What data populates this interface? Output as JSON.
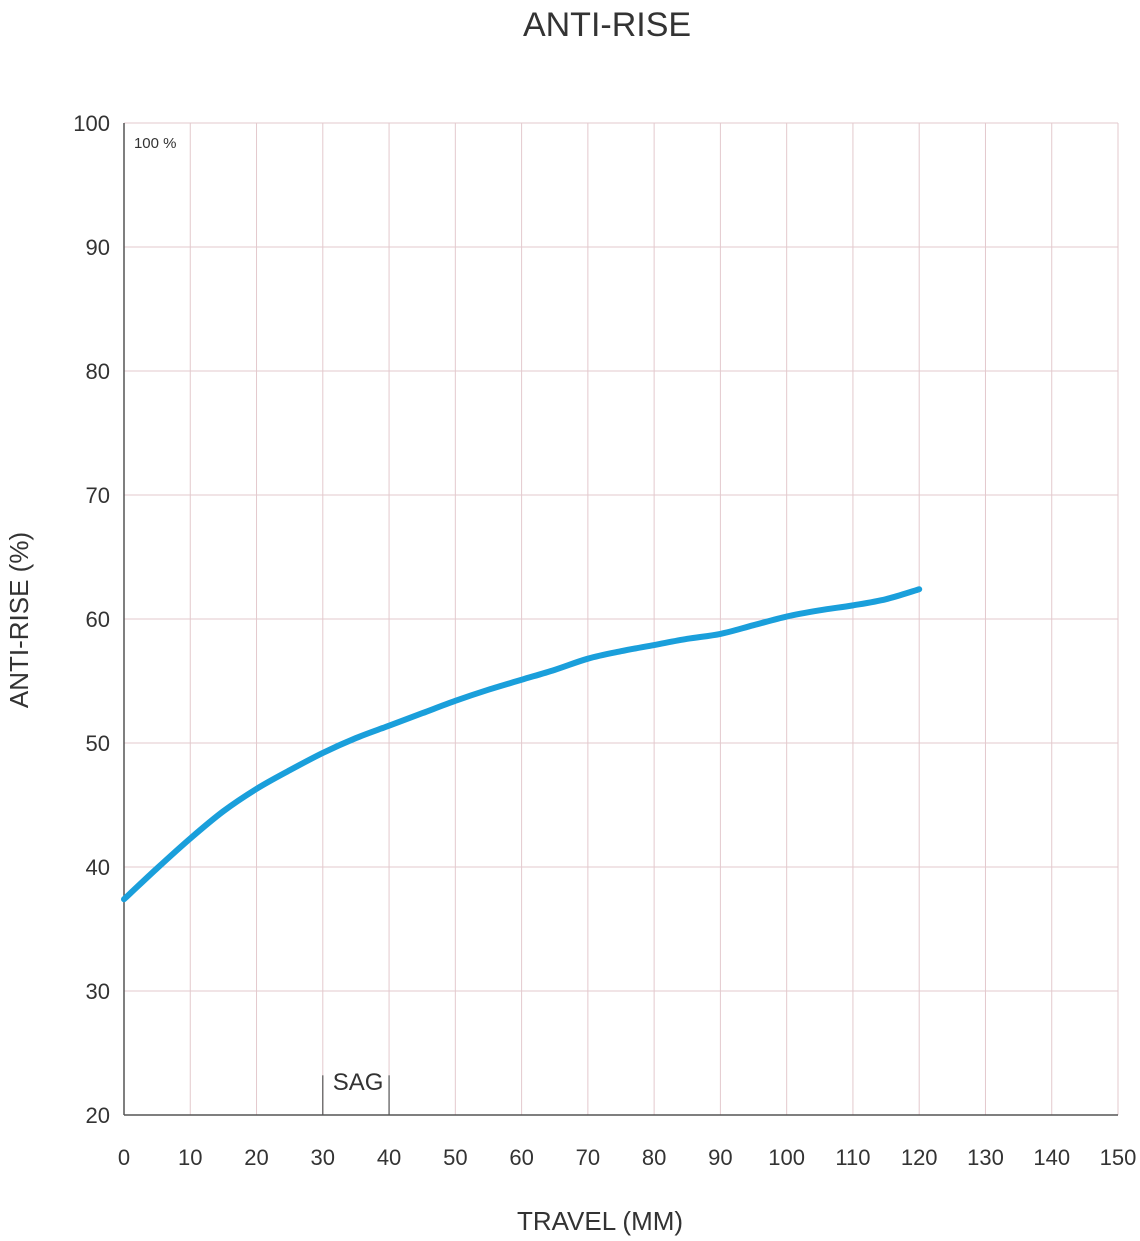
{
  "chart_data": {
    "type": "line",
    "title": "ANTI-RISE",
    "xlabel": "TRAVEL (MM)",
    "ylabel": "ANTI-RISE (%)",
    "xlim": [
      0,
      150
    ],
    "ylim": [
      20,
      100
    ],
    "x_ticks": [
      "0",
      "10",
      "20",
      "30",
      "40",
      "50",
      "60",
      "70",
      "80",
      "90",
      "100",
      "110",
      "120",
      "130",
      "140",
      "150"
    ],
    "y_ticks": [
      "20",
      "30",
      "40",
      "50",
      "60",
      "70",
      "80",
      "90",
      "100"
    ],
    "grid": true,
    "legend": "none",
    "annotations": [
      {
        "text": "100 %",
        "x": 1.5,
        "y": 98
      },
      {
        "text": "SAG",
        "x": 31.5,
        "y": 22
      }
    ],
    "sag_marker": {
      "x_start": 30,
      "x_end": 40
    },
    "series": [
      {
        "color": "#1a9fdb",
        "x": [
          0,
          5,
          10,
          15,
          20,
          25,
          30,
          35,
          40,
          45,
          50,
          55,
          60,
          65,
          70,
          75,
          80,
          85,
          90,
          95,
          100,
          105,
          110,
          115,
          120
        ],
        "y": [
          37.4,
          39.9,
          42.3,
          44.5,
          46.3,
          47.8,
          49.2,
          50.4,
          51.4,
          52.4,
          53.4,
          54.3,
          55.1,
          55.9,
          56.8,
          57.4,
          57.9,
          58.4,
          58.8,
          59.5,
          60.2,
          60.7,
          61.1,
          61.6,
          62.4
        ]
      }
    ]
  }
}
